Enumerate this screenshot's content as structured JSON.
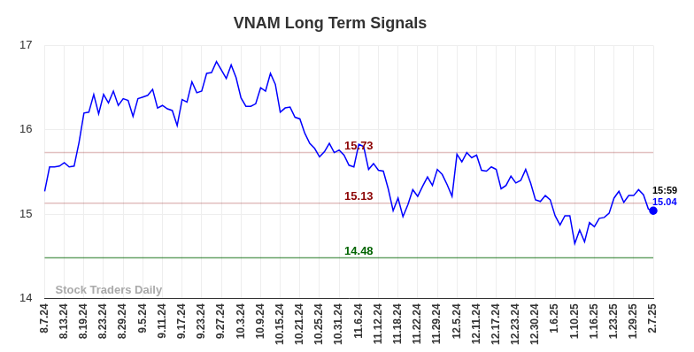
{
  "chart_data": {
    "type": "line",
    "title": "VNAM Long Term Signals",
    "categories": [
      "8.7.24",
      null,
      null,
      null,
      "8.13.24",
      null,
      null,
      null,
      "8.19.24",
      null,
      null,
      null,
      "8.23.24",
      null,
      null,
      null,
      "8.29.24",
      null,
      null,
      null,
      "9.5.24",
      null,
      null,
      null,
      "9.11.24",
      null,
      null,
      null,
      "9.17.24",
      null,
      null,
      null,
      "9.23.24",
      null,
      null,
      null,
      "9.27.24",
      null,
      null,
      null,
      "10.3.24",
      null,
      null,
      null,
      "10.9.24",
      null,
      null,
      null,
      "10.15.24",
      null,
      null,
      null,
      "10.21.24",
      null,
      null,
      null,
      "10.25.24",
      null,
      null,
      null,
      "10.31.24",
      null,
      null,
      null,
      "11.6.24",
      null,
      null,
      null,
      "11.12.24",
      null,
      null,
      null,
      "11.18.24",
      null,
      null,
      null,
      "11.22.24",
      null,
      null,
      null,
      "11.29.24",
      null,
      null,
      null,
      "12.5.24",
      null,
      null,
      null,
      "12.11.24",
      null,
      null,
      null,
      "12.17.24",
      null,
      null,
      null,
      "12.23.24",
      null,
      null,
      null,
      "12.30.24",
      null,
      null,
      null,
      "1.6.25",
      null,
      null,
      null,
      "1.10.25",
      null,
      null,
      null,
      "1.16.25",
      null,
      null,
      null,
      "1.23.25",
      null,
      null,
      null,
      "1.29.25",
      null,
      null,
      null,
      "2.7.25"
    ],
    "series": [
      {
        "color": "#0000ff",
        "values": [
          15.27,
          15.56,
          15.56,
          15.57,
          15.61,
          15.56,
          15.57,
          15.85,
          16.2,
          16.21,
          16.42,
          16.19,
          16.42,
          16.32,
          16.46,
          16.29,
          16.37,
          16.35,
          16.16,
          16.37,
          16.39,
          16.41,
          16.48,
          16.26,
          16.29,
          16.25,
          16.23,
          16.05,
          16.36,
          16.33,
          16.57,
          16.44,
          16.46,
          16.67,
          16.68,
          16.81,
          16.71,
          16.61,
          16.77,
          16.62,
          16.38,
          16.28,
          16.28,
          16.31,
          16.5,
          16.46,
          16.67,
          16.54,
          16.21,
          16.26,
          16.27,
          16.15,
          16.13,
          15.96,
          15.84,
          15.78,
          15.68,
          15.74,
          15.84,
          15.73,
          15.76,
          15.7,
          15.58,
          15.56,
          15.83,
          15.8,
          15.53,
          15.6,
          15.52,
          15.51,
          15.3,
          15.04,
          15.19,
          14.97,
          15.11,
          15.29,
          15.21,
          15.33,
          15.44,
          15.34,
          15.53,
          15.47,
          15.35,
          15.21,
          15.71,
          15.62,
          15.73,
          15.67,
          15.7,
          15.52,
          15.51,
          15.56,
          15.53,
          15.3,
          15.34,
          15.45,
          15.37,
          15.4,
          15.53,
          15.37,
          15.17,
          15.15,
          15.22,
          15.17,
          14.98,
          14.87,
          14.98,
          14.98,
          14.65,
          14.81,
          14.67,
          14.9,
          14.85,
          14.95,
          14.96,
          15.01,
          15.19,
          15.27,
          15.14,
          15.22,
          15.22,
          15.29,
          15.23,
          15.06,
          15.04
        ]
      }
    ],
    "reference_lines": [
      {
        "value": 15.73,
        "label": "15.73",
        "color": "#8b0000"
      },
      {
        "value": 15.13,
        "label": "15.13",
        "color": "#8b0000"
      },
      {
        "value": 14.48,
        "label": "14.48",
        "color": "#006400"
      }
    ],
    "last_point_labels": [
      "15:59",
      "15.04"
    ],
    "watermark": "Stock Traders Daily",
    "ylim": [
      14,
      17
    ],
    "yticks": [
      14,
      15,
      16,
      17
    ],
    "grid": true
  }
}
